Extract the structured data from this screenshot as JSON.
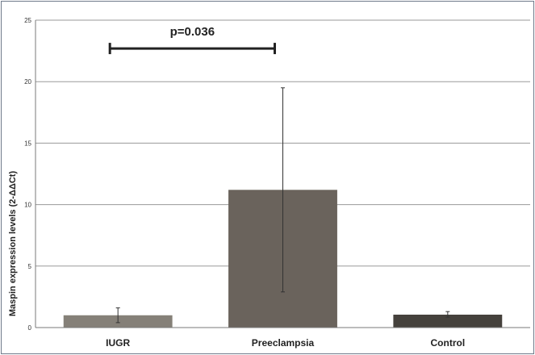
{
  "chart_data": {
    "type": "bar",
    "title": "",
    "xlabel": "",
    "ylabel": "Maspin expression levels (2-ΔΔCt)",
    "ylim": [
      0,
      25
    ],
    "yticks": [
      0,
      5,
      10,
      15,
      20,
      25
    ],
    "grid": true,
    "legend": "none",
    "categories": [
      "IUGR",
      "Preeclampsia",
      "Control"
    ],
    "values": [
      1.0,
      11.2,
      1.05
    ],
    "error_low": [
      0.4,
      2.9,
      0.85
    ],
    "error_high": [
      1.6,
      19.5,
      1.3
    ],
    "colors": [
      "#858078",
      "#6a635c",
      "#45413c"
    ],
    "annotations": [
      {
        "text": "p=0.036",
        "from": "IUGR",
        "to": "Preeclampsia",
        "y": 22.5
      }
    ]
  }
}
